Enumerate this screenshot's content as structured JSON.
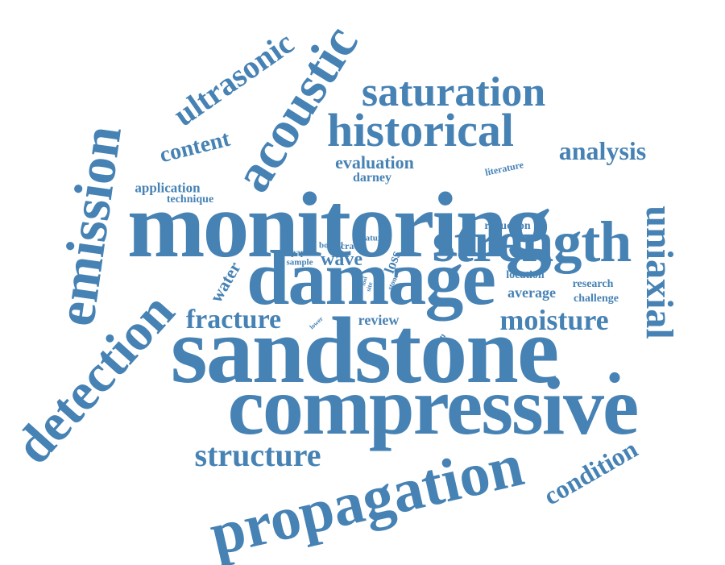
{
  "cloud": {
    "color": "#4682b4",
    "words": [
      "sandstone",
      "compressive",
      "monitoring",
      "damage",
      "strength",
      "propagation",
      "historical",
      "saturation",
      "acoustic",
      "emission",
      "detection",
      "uniaxial",
      "ultrasonic",
      "moisture",
      "fracture",
      "structure",
      "analysis",
      "content",
      "condition",
      "evaluation",
      "wave",
      "water",
      "application",
      "technique",
      "darney",
      "literature",
      "reduction",
      "review",
      "average",
      "research",
      "challenge",
      "location",
      "crack",
      "loss",
      "nature",
      "bound",
      "paper",
      "sample",
      "stone",
      "site",
      "lower",
      "solution",
      "tool",
      "."
    ]
  }
}
